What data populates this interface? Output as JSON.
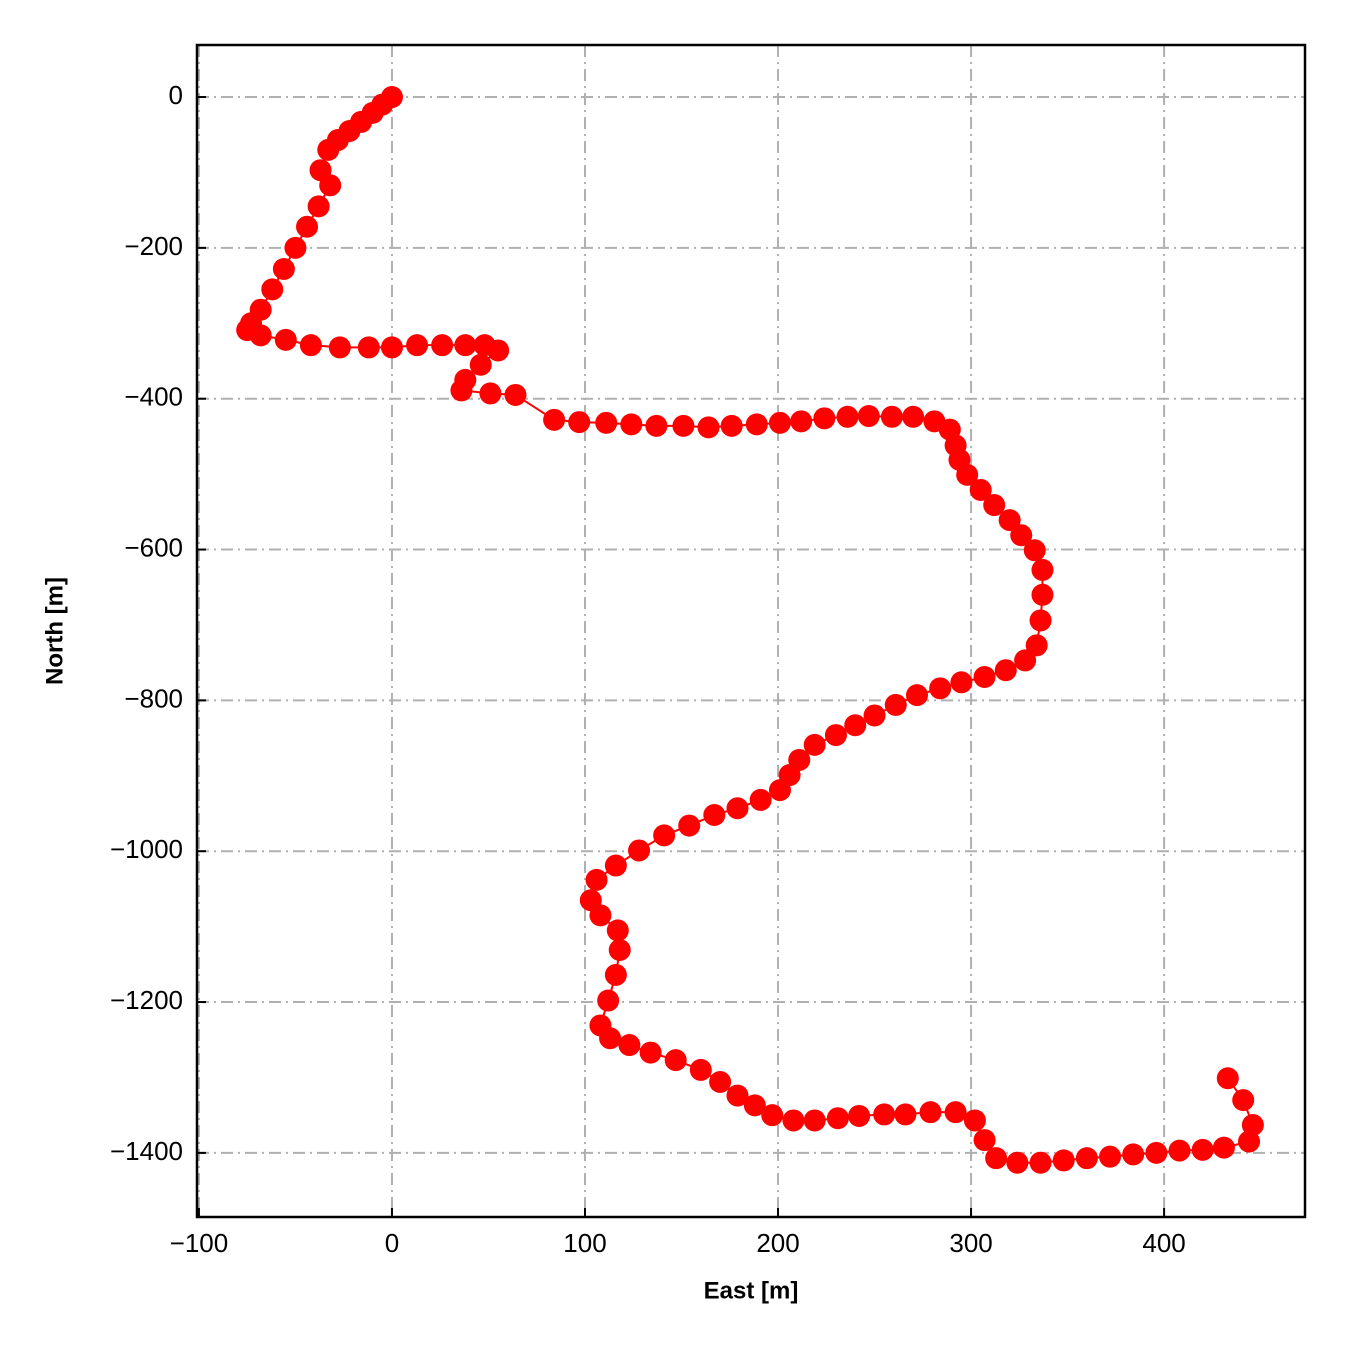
{
  "chart_data": {
    "type": "line",
    "x_label": "East [m]",
    "y_label": "North [m]",
    "color": "#ff0000",
    "grid": true,
    "xlim": [
      -101,
      473
    ],
    "ylim": [
      -1485,
      69
    ],
    "xticks": [
      {
        "value": -100,
        "label": "−100"
      },
      0,
      100,
      200,
      300,
      400
    ],
    "yticks": [
      0,
      {
        "value": -200,
        "label": "−200"
      },
      {
        "value": -400,
        "label": "−400"
      },
      {
        "value": -600,
        "label": "−600"
      },
      {
        "value": -800,
        "label": "−800"
      },
      {
        "value": -1000,
        "label": "−1000"
      },
      {
        "value": -1200,
        "label": "−1200"
      },
      {
        "value": -1400,
        "label": "−1400"
      }
    ],
    "x": [
      0,
      -5,
      -10,
      -16,
      -22,
      -28,
      -33,
      -37,
      -32,
      -38,
      -44,
      -50,
      -56,
      -62,
      -68,
      -73,
      -75,
      -68,
      -55,
      -42,
      -27,
      -12,
      0,
      13,
      26,
      38,
      48,
      55,
      46,
      38,
      36,
      51,
      64,
      84,
      97,
      111,
      124,
      137,
      151,
      164,
      176,
      189,
      201,
      212,
      224,
      236,
      247,
      259,
      270,
      281,
      289,
      292,
      294,
      298,
      305,
      312,
      320,
      326,
      333,
      337,
      337,
      336,
      334,
      328,
      318,
      307,
      295,
      284,
      272,
      261,
      250,
      240,
      230,
      219,
      211,
      206,
      201,
      191,
      179,
      167,
      154,
      141,
      128,
      116,
      106,
      103,
      108,
      117,
      118,
      116,
      112,
      108,
      113,
      123,
      134,
      147,
      160,
      170,
      179,
      188,
      197,
      208,
      219,
      231,
      242,
      255,
      266,
      279,
      292,
      302,
      307,
      313,
      324,
      336,
      348,
      360,
      372,
      384,
      396,
      408,
      420,
      431,
      444,
      446,
      441,
      433
    ],
    "values": [
      0,
      -10,
      -21,
      -33,
      -45,
      -57,
      -70,
      -97,
      -117,
      -145,
      -172,
      -200,
      -228,
      -255,
      -282,
      -300,
      -309,
      -316,
      -322,
      -329,
      -332,
      -332,
      -332,
      -329,
      -329,
      -329,
      -329,
      -336,
      -355,
      -375,
      -389,
      -393,
      -395,
      -428,
      -431,
      -432,
      -434,
      -436,
      -436,
      -438,
      -436,
      -434,
      -432,
      -430,
      -426,
      -424,
      -423,
      -424,
      -424,
      -430,
      -441,
      -462,
      -481,
      -501,
      -521,
      -541,
      -561,
      -581,
      -601,
      -627,
      -660,
      -694,
      -727,
      -747,
      -760,
      -769,
      -776,
      -784,
      -793,
      -806,
      -820,
      -833,
      -846,
      -859,
      -879,
      -899,
      -919,
      -932,
      -943,
      -952,
      -966,
      -979,
      -999,
      -1019,
      -1038,
      -1065,
      -1085,
      -1105,
      -1131,
      -1164,
      -1198,
      -1231,
      -1248,
      -1257,
      -1267,
      -1277,
      -1290,
      -1306,
      -1324,
      -1337,
      -1350,
      -1357,
      -1357,
      -1354,
      -1351,
      -1349,
      -1349,
      -1346,
      -1346,
      -1357,
      -1383,
      -1407,
      -1413,
      -1413,
      -1410,
      -1407,
      -1405,
      -1402,
      -1400,
      -1397,
      -1396,
      -1393,
      -1385,
      -1363,
      -1330,
      -1301
    ]
  }
}
